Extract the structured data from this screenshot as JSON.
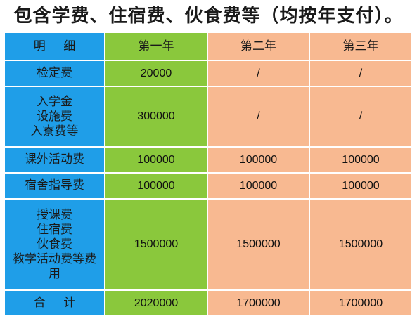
{
  "title": "包含学费、住宿费、伙食费等（均按年支付）。",
  "header": {
    "item": "明细",
    "year1": "第一年",
    "year2": "第二年",
    "year3": "第三年"
  },
  "rows": [
    {
      "item_lines": [
        "检定费"
      ],
      "year1": "20000",
      "year2": "/",
      "year3": "/"
    },
    {
      "item_lines": [
        "入学金",
        "设施费",
        "入寮费等"
      ],
      "year1": "300000",
      "year2": "/",
      "year3": "/"
    },
    {
      "item_lines": [
        "课外活动费"
      ],
      "year1": "100000",
      "year2": "100000",
      "year3": "100000"
    },
    {
      "item_lines": [
        "宿舍指导费"
      ],
      "year1": "100000",
      "year2": "100000",
      "year3": "100000"
    },
    {
      "item_lines": [
        "授课费",
        "住宿费",
        "伙食费",
        "教学活动费等费",
        "用"
      ],
      "year1": "1500000",
      "year2": "1500000",
      "year3": "1500000"
    }
  ],
  "total": {
    "item": "合计",
    "year1": "2020000",
    "year2": "1700000",
    "year3": "1700000"
  },
  "colors": {
    "item_column": "#1f9ee8",
    "year1_column": "#8ac83c",
    "year2_year3_columns": "#f8b991"
  }
}
